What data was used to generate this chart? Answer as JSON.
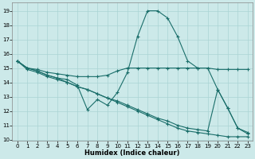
{
  "xlabel": "Humidex (Indice chaleur)",
  "background_color": "#cce9e9",
  "line_color": "#1a6e6a",
  "grid_color": "#aad4d4",
  "xlim": [
    -0.5,
    23.5
  ],
  "ylim": [
    9.9,
    19.6
  ],
  "xticks": [
    0,
    1,
    2,
    3,
    4,
    5,
    6,
    7,
    8,
    9,
    10,
    11,
    12,
    13,
    14,
    15,
    16,
    17,
    18,
    19,
    20,
    21,
    22,
    23
  ],
  "yticks": [
    10,
    11,
    12,
    13,
    14,
    15,
    16,
    17,
    18,
    19
  ],
  "lines": [
    {
      "x": [
        0,
        1,
        2,
        3,
        4,
        5,
        6,
        7,
        8,
        9,
        10,
        11,
        12,
        13,
        14,
        15,
        16,
        17,
        18,
        19,
        20,
        21,
        22,
        23
      ],
      "y": [
        15.5,
        15.0,
        14.8,
        14.5,
        14.3,
        14.2,
        13.8,
        12.1,
        12.8,
        12.4,
        13.3,
        14.7,
        17.2,
        19.0,
        19.0,
        18.5,
        17.2,
        15.5,
        15.0,
        15.0,
        13.5,
        12.2,
        10.8,
        10.5
      ]
    },
    {
      "x": [
        0,
        1,
        2,
        3,
        4,
        5,
        6,
        7,
        8,
        9,
        10,
        11,
        12,
        13,
        14,
        15,
        16,
        17,
        18,
        19,
        20,
        21,
        22,
        23
      ],
      "y": [
        15.5,
        15.0,
        14.9,
        14.7,
        14.6,
        14.5,
        14.4,
        14.4,
        14.4,
        14.5,
        14.8,
        15.0,
        15.0,
        15.0,
        15.0,
        15.0,
        15.0,
        15.0,
        15.0,
        15.0,
        14.9,
        14.9,
        14.9,
        14.9
      ]
    },
    {
      "x": [
        0,
        1,
        2,
        3,
        4,
        5,
        6,
        7,
        8,
        9,
        10,
        11,
        12,
        13,
        14,
        15,
        16,
        17,
        18,
        19,
        20,
        21,
        22,
        23
      ],
      "y": [
        15.5,
        15.0,
        14.8,
        14.5,
        14.3,
        14.0,
        13.7,
        13.5,
        13.2,
        12.9,
        12.6,
        12.3,
        12.0,
        11.7,
        11.4,
        11.1,
        10.8,
        10.6,
        10.5,
        10.4,
        10.3,
        10.2,
        10.2,
        10.2
      ]
    },
    {
      "x": [
        0,
        1,
        2,
        3,
        4,
        5,
        6,
        7,
        8,
        9,
        10,
        11,
        12,
        13,
        14,
        15,
        16,
        17,
        18,
        19,
        20,
        21,
        22,
        23
      ],
      "y": [
        15.5,
        14.9,
        14.7,
        14.4,
        14.2,
        14.0,
        13.7,
        13.5,
        13.2,
        12.9,
        12.7,
        12.4,
        12.1,
        11.8,
        11.5,
        11.3,
        11.0,
        10.8,
        10.7,
        10.6,
        13.5,
        12.2,
        10.8,
        10.4
      ]
    }
  ],
  "marker": "+",
  "markersize": 3.5,
  "linewidth": 0.8,
  "tick_fontsize": 5.0,
  "label_fontsize": 6.0
}
